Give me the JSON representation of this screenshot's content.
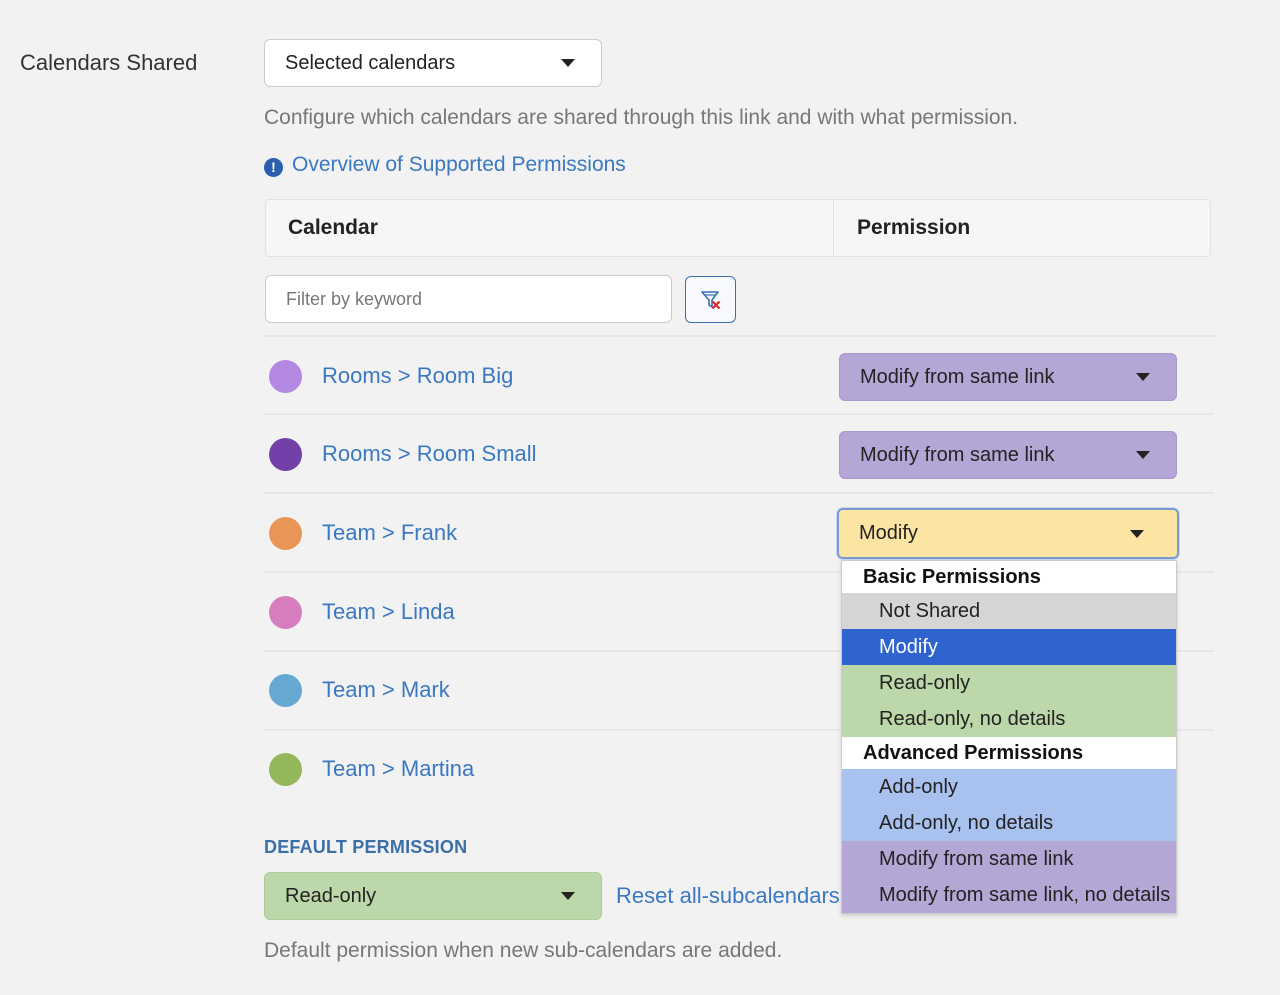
{
  "section_label": "Calendars Shared",
  "calendars_select": {
    "value": "Selected calendars"
  },
  "help_text": "Configure which calendars are shared through this link and with what permission.",
  "overview_link": "Overview of Supported Permissions",
  "table": {
    "headers": {
      "calendar": "Calendar",
      "permission": "Permission"
    },
    "filter_placeholder": "Filter by keyword",
    "rows": [
      {
        "name": "Rooms > Room Big",
        "color": "#b388e3",
        "permission": "Modify from same link"
      },
      {
        "name": "Rooms > Room Small",
        "color": "#7140a8",
        "permission": "Modify from same link"
      },
      {
        "name": "Team > Frank",
        "color": "#ea9558",
        "permission": "Modify"
      },
      {
        "name": "Team > Linda",
        "color": "#d77dbf",
        "permission": ""
      },
      {
        "name": "Team > Mark",
        "color": "#65a8d1",
        "permission": ""
      },
      {
        "name": "Team > Martina",
        "color": "#93b759",
        "permission": ""
      }
    ]
  },
  "dropdown": {
    "groups": [
      {
        "label": "Basic Permissions",
        "options": [
          {
            "label": "Not Shared",
            "bg": "#d5d5d5",
            "fg": "#222222"
          },
          {
            "label": "Modify",
            "bg": "#2f64cf",
            "fg": "#ffffff",
            "selected": true
          },
          {
            "label": "Read-only",
            "bg": "#bcd7a9",
            "fg": "#222222"
          },
          {
            "label": "Read-only, no details",
            "bg": "#bcd7a9",
            "fg": "#222222"
          }
        ]
      },
      {
        "label": "Advanced Permissions",
        "options": [
          {
            "label": "Add-only",
            "bg": "#a9c1ef",
            "fg": "#222222"
          },
          {
            "label": "Add-only, no details",
            "bg": "#a9c1ef",
            "fg": "#222222"
          },
          {
            "label": "Modify from same link",
            "bg": "#b4a7d6",
            "fg": "#222222"
          },
          {
            "label": "Modify from same link, no details",
            "bg": "#b4a7d6",
            "fg": "#222222"
          }
        ]
      }
    ]
  },
  "default_permission": {
    "heading": "DEFAULT PERMISSION",
    "value": "Read-only",
    "reset_link": "Reset all-subcalendars",
    "help": "Default permission when new sub-calendars are added."
  }
}
